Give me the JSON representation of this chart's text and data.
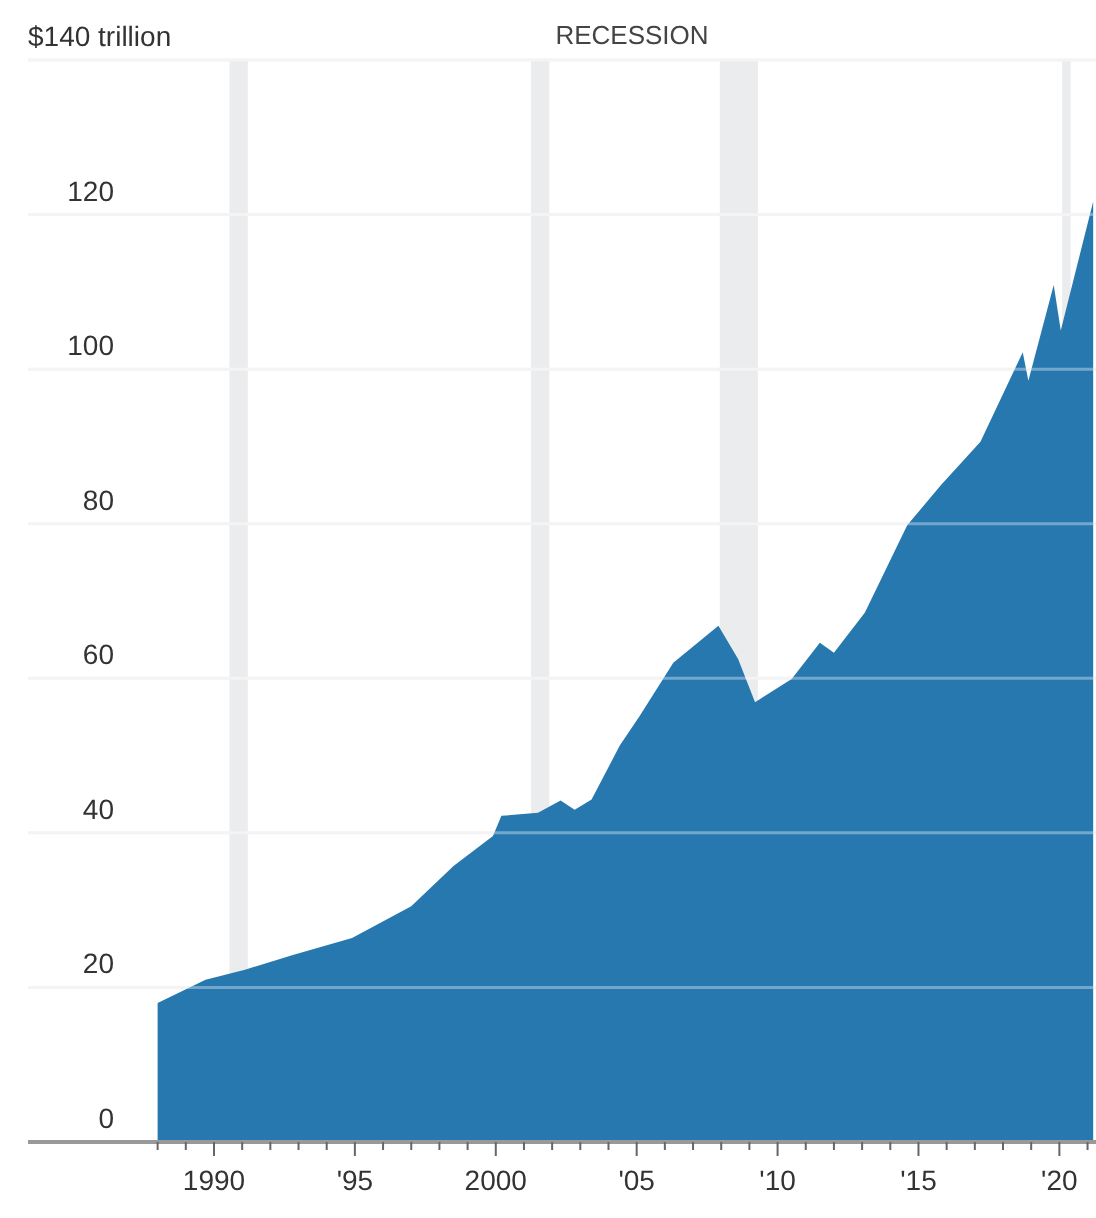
{
  "chart_data": {
    "type": "area",
    "x": [
      1988,
      1989.7,
      1991.1,
      1992.8,
      1994.9,
      1997,
      1998.5,
      1999.9,
      2000.2,
      2001.5,
      2002.3,
      2002.8,
      2003.4,
      2004.4,
      2005.1,
      2006.3,
      2007.9,
      2008.6,
      2009.2,
      2010.5,
      2011.5,
      2012,
      2013.1,
      2014.6,
      2015.8,
      2017.2,
      2018.7,
      2018.9,
      2019.8,
      2020.05,
      2021.2
    ],
    "series": [
      {
        "color": "#2878b0",
        "values": [
          18,
          21,
          22.3,
          24.2,
          26.4,
          30.5,
          35.7,
          39.6,
          42.2,
          42.6,
          44.2,
          43,
          44.3,
          51.3,
          55.1,
          62,
          66.8,
          62.5,
          56.9,
          59.9,
          64.6,
          63.3,
          68.5,
          79.8,
          85,
          90.6,
          102.2,
          98.5,
          110.9,
          105,
          121.7
        ]
      }
    ],
    "xlim": [
      1983.4,
      2021.3
    ],
    "xticks": [
      {
        "value": 1988,
        "label": null
      },
      {
        "value": 1989,
        "label": null
      },
      {
        "value": 1990,
        "label": "1990"
      },
      {
        "value": 1991,
        "label": null
      },
      {
        "value": 1992,
        "label": null
      },
      {
        "value": 1993,
        "label": null
      },
      {
        "value": 1994,
        "label": null
      },
      {
        "value": 1995,
        "label": "'95"
      },
      {
        "value": 1996,
        "label": null
      },
      {
        "value": 1997,
        "label": null
      },
      {
        "value": 1998,
        "label": null
      },
      {
        "value": 1999,
        "label": null
      },
      {
        "value": 2000,
        "label": "2000"
      },
      {
        "value": 2001,
        "label": null
      },
      {
        "value": 2002,
        "label": null
      },
      {
        "value": 2003,
        "label": null
      },
      {
        "value": 2004,
        "label": null
      },
      {
        "value": 2005,
        "label": "'05"
      },
      {
        "value": 2006,
        "label": null
      },
      {
        "value": 2007,
        "label": null
      },
      {
        "value": 2008,
        "label": null
      },
      {
        "value": 2009,
        "label": null
      },
      {
        "value": 2010,
        "label": "'10"
      },
      {
        "value": 2011,
        "label": null
      },
      {
        "value": 2012,
        "label": null
      },
      {
        "value": 2013,
        "label": null
      },
      {
        "value": 2014,
        "label": null
      },
      {
        "value": 2015,
        "label": "'15"
      },
      {
        "value": 2016,
        "label": null
      },
      {
        "value": 2017,
        "label": null
      },
      {
        "value": 2018,
        "label": null
      },
      {
        "value": 2019,
        "label": null
      },
      {
        "value": 2020,
        "label": "'20"
      },
      {
        "value": 2021,
        "label": null
      }
    ],
    "ylim": [
      0,
      140
    ],
    "yticks": [
      0,
      20,
      40,
      60,
      80,
      100,
      120,
      {
        "value": 140,
        "label": "$140 trillion"
      }
    ],
    "grid": "y",
    "bands": [
      {
        "axis": "x",
        "from": 1990.55,
        "to": 1991.2,
        "color": "#ebecee"
      },
      {
        "axis": "x",
        "from": 2001.25,
        "to": 2001.9,
        "color": "#ebecee"
      },
      {
        "axis": "x",
        "from": 2007.95,
        "to": 2009.3,
        "color": "#ebecee"
      },
      {
        "axis": "x",
        "from": 2020.1,
        "to": 2020.4,
        "color": "#ebecee"
      }
    ],
    "annotations": [
      "RECESSION"
    ]
  }
}
